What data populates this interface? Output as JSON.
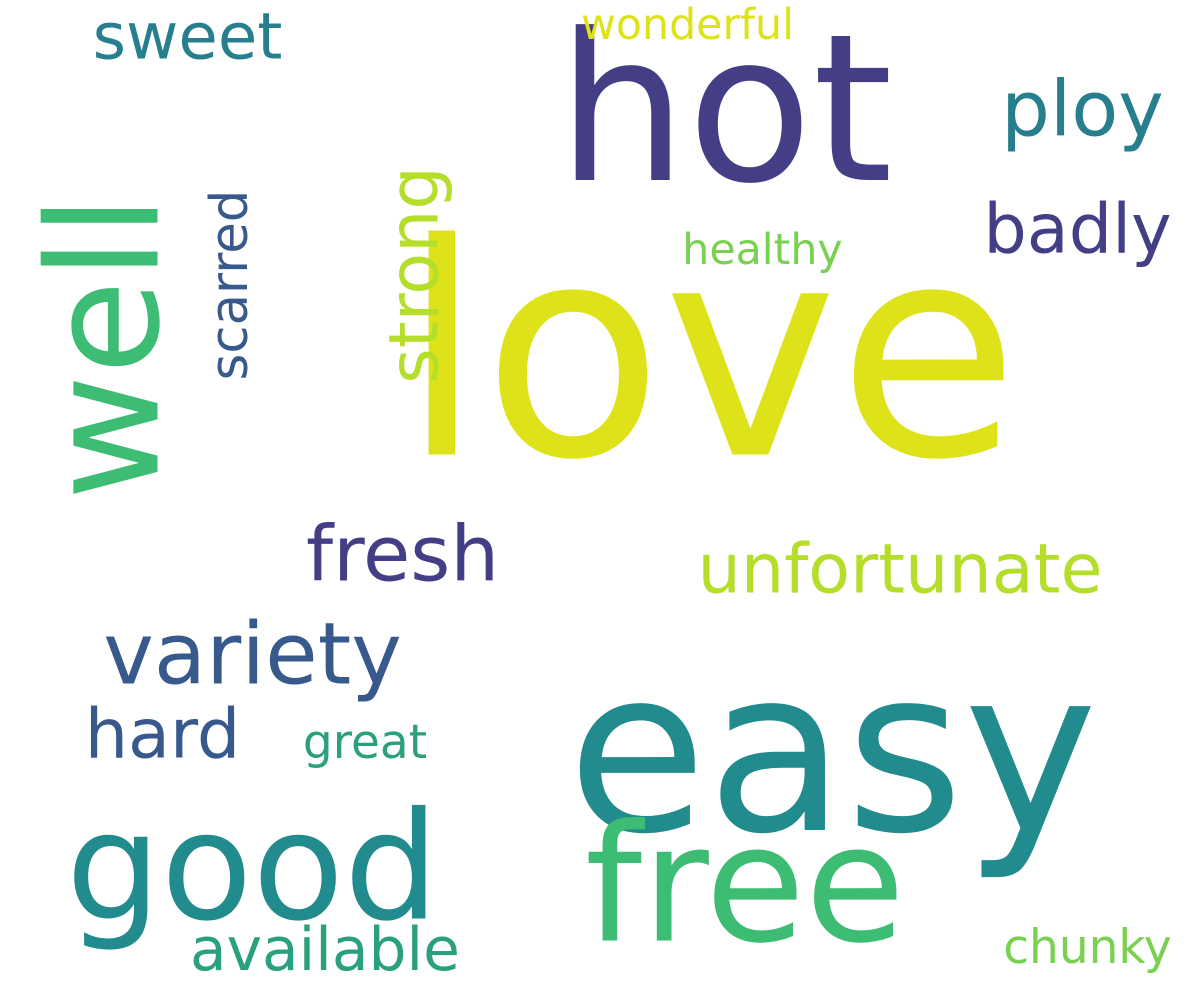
{
  "palette": {
    "yellow": "#dde318",
    "lime": "#b5de2b",
    "lightgreen": "#7ad151",
    "green": "#3dbc74",
    "seagreen": "#2ba07e",
    "teal": "#228b8d",
    "tealblue": "#277f8e",
    "steel": "#38598c",
    "indigo": "#433e85"
  },
  "words": [
    {
      "text": "love",
      "colorKey": "yellow"
    },
    {
      "text": "hot",
      "colorKey": "indigo"
    },
    {
      "text": "easy",
      "colorKey": "teal"
    },
    {
      "text": "well",
      "colorKey": "green"
    },
    {
      "text": "good",
      "colorKey": "teal"
    },
    {
      "text": "free",
      "colorKey": "green"
    },
    {
      "text": "variety",
      "colorKey": "steel"
    },
    {
      "text": "unfortunate",
      "colorKey": "lime"
    },
    {
      "text": "fresh",
      "colorKey": "indigo"
    },
    {
      "text": "sweet",
      "colorKey": "tealblue"
    },
    {
      "text": "strong",
      "colorKey": "lime"
    },
    {
      "text": "scarred",
      "colorKey": "steel"
    },
    {
      "text": "ploy",
      "colorKey": "tealblue"
    },
    {
      "text": "badly",
      "colorKey": "indigo"
    },
    {
      "text": "hard",
      "colorKey": "steel"
    },
    {
      "text": "available",
      "colorKey": "seagreen"
    },
    {
      "text": "healthy",
      "colorKey": "lightgreen"
    },
    {
      "text": "wonderful",
      "colorKey": "yellow"
    },
    {
      "text": "great",
      "colorKey": "seagreen"
    },
    {
      "text": "chunky",
      "colorKey": "lightgreen"
    }
  ]
}
